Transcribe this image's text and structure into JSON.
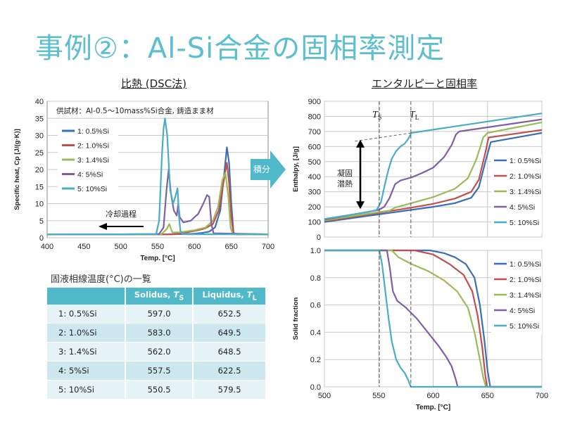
{
  "slide": {
    "title": "事例②：Al-Si合金の固相率測定",
    "left_heading": "比熱 (DSC法)",
    "right_heading": "エンタルピーと固相率",
    "integral_label": "積分"
  },
  "colors": {
    "title": "#5bbfcf",
    "accent": "#4fb8c9",
    "s1": "#3a6fb7",
    "s2": "#c0504d",
    "s3": "#9bbb59",
    "s4": "#7e5fa6",
    "s5": "#4bacc6"
  },
  "table": {
    "caption": "固液相線温度(°C)の一覧",
    "headers": [
      "",
      "Solidus, Ts",
      "Liquidus, TL"
    ],
    "rows": [
      {
        "name": "1: 0.5%Si",
        "solidus": "597.0",
        "liquidus": "652.5"
      },
      {
        "name": "2: 1.0%Si",
        "solidus": "583.0",
        "liquidus": "649.5"
      },
      {
        "name": "3: 1.4%Si",
        "solidus": "562.0",
        "liquidus": "648.5"
      },
      {
        "name": "4: 5%Si",
        "solidus": "557.5",
        "liquidus": "622.5"
      },
      {
        "name": "5: 10%Si",
        "solidus": "550.5",
        "liquidus": "579.5"
      }
    ]
  },
  "chart_data": [
    {
      "type": "line",
      "id": "dsc",
      "xlabel": "Temp. [°C]",
      "ylabel": "Specific heat, Cp [J/(g·K)]",
      "xlim": [
        400,
        700
      ],
      "ylim": [
        0,
        40
      ],
      "xticks": [
        400,
        450,
        500,
        550,
        600,
        650,
        700
      ],
      "yticks": [
        0,
        5,
        10,
        15,
        20,
        25,
        30,
        35,
        40
      ],
      "note": "供試材：Al-0.5～10mass%Si合金, 鋳造まま材",
      "annotation": "冷却過程",
      "legend": "upper-left",
      "grid": true,
      "series": [
        {
          "name": "1: 0.5%Si",
          "x": [
            400,
            500,
            560,
            590,
            600,
            610,
            620,
            628,
            635,
            640,
            644,
            647,
            650,
            653,
            656,
            700
          ],
          "y": [
            1.0,
            1.0,
            1.0,
            1.1,
            1.2,
            1.4,
            1.8,
            3,
            8,
            18,
            26.5,
            22,
            10,
            1.5,
            1.0,
            1.0
          ]
        },
        {
          "name": "2: 1.0%Si",
          "x": [
            400,
            500,
            570,
            584,
            595,
            605,
            615,
            625,
            633,
            640,
            644,
            647,
            650,
            653,
            700
          ],
          "y": [
            1.0,
            1.0,
            1.0,
            1.3,
            1.8,
            2.2,
            2.8,
            4,
            8,
            17,
            22,
            16,
            6,
            1.1,
            1.0
          ]
        },
        {
          "name": "3: 1.4%Si",
          "x": [
            400,
            500,
            555,
            562,
            566,
            570,
            580,
            600,
            615,
            625,
            632,
            638,
            642,
            646,
            649,
            652,
            700
          ],
          "y": [
            1.0,
            1.0,
            1.0,
            2.5,
            4,
            1.5,
            1.6,
            2.2,
            3,
            5,
            9,
            17,
            19,
            12,
            3,
            1.1,
            1.0
          ]
        },
        {
          "name": "4: 5%Si",
          "x": [
            400,
            500,
            552,
            558,
            562,
            565,
            568,
            572,
            576,
            578,
            580,
            585,
            595,
            605,
            612,
            617,
            620,
            623,
            626,
            700
          ],
          "y": [
            1.0,
            1.0,
            1.1,
            3,
            14,
            20,
            13,
            8,
            6.5,
            10,
            6,
            4.5,
            5,
            7,
            10,
            12.5,
            12,
            4,
            1.3,
            1.0
          ]
        },
        {
          "name": "5: 10%Si",
          "x": [
            400,
            500,
            548,
            552,
            556,
            558,
            560,
            563,
            567,
            571,
            574,
            577,
            579,
            581,
            584,
            590,
            700
          ],
          "y": [
            1.0,
            1.0,
            1.1,
            5,
            25,
            32,
            35,
            30,
            14,
            10,
            12,
            14.5,
            6,
            2,
            1.2,
            1.0,
            1.0
          ]
        }
      ]
    },
    {
      "type": "line",
      "id": "enthalpy",
      "xlabel": "",
      "ylabel": "Enthalpy, [J/g]",
      "xlim": [
        500,
        700
      ],
      "ylim": [
        0,
        900
      ],
      "xticks": [
        500,
        550,
        600,
        650,
        700
      ],
      "yticks": [
        0,
        100,
        200,
        300,
        400,
        500,
        600,
        700,
        800,
        900
      ],
      "solidus_label": "TS",
      "liquidus_label": "TL",
      "solidus_line": 550.5,
      "liquidus_line": 579.5,
      "latent_heat_label": [
        "凝固",
        "潜熱"
      ],
      "legend": "right",
      "grid": true,
      "series": [
        {
          "name": "1: 0.5%Si",
          "x": [
            500,
            550,
            580,
            600,
            620,
            635,
            642,
            648,
            653,
            700
          ],
          "y": [
            100,
            150,
            180,
            200,
            225,
            260,
            330,
            500,
            630,
            690
          ]
        },
        {
          "name": "2: 1.0%Si",
          "x": [
            500,
            550,
            580,
            600,
            620,
            635,
            642,
            648,
            651,
            700
          ],
          "y": [
            105,
            160,
            195,
            220,
            255,
            300,
            380,
            560,
            660,
            710
          ]
        },
        {
          "name": "3: 1.4%Si",
          "x": [
            500,
            550,
            560,
            565,
            580,
            600,
            620,
            632,
            640,
            646,
            650,
            700
          ],
          "y": [
            110,
            165,
            175,
            195,
            225,
            265,
            320,
            390,
            520,
            660,
            690,
            760
          ]
        },
        {
          "name": "4: 5%Si",
          "x": [
            500,
            550,
            555,
            560,
            565,
            570,
            580,
            590,
            600,
            610,
            617,
            621,
            624,
            700
          ],
          "y": [
            115,
            180,
            200,
            260,
            350,
            375,
            395,
            425,
            460,
            530,
            610,
            680,
            700,
            780
          ]
        },
        {
          "name": "5: 10%Si",
          "x": [
            500,
            540,
            548,
            552,
            556,
            559,
            562,
            566,
            570,
            574,
            577,
            580,
            700
          ],
          "y": [
            120,
            165,
            180,
            230,
            360,
            450,
            520,
            570,
            600,
            620,
            650,
            690,
            820
          ]
        },
        {
          "name": "",
          "x": [
            528,
            580
          ],
          "y": [
            635,
            690
          ],
          "dashed": true
        }
      ]
    },
    {
      "type": "line",
      "id": "solid_fraction",
      "xlabel": "Temp. [°C]",
      "ylabel": "Solid fraction",
      "xlim": [
        500,
        700
      ],
      "ylim": [
        0,
        1
      ],
      "xticks": [
        500,
        550,
        600,
        650,
        700
      ],
      "yticks": [
        0.0,
        0.2,
        0.4,
        0.6,
        0.8,
        1.0
      ],
      "legend": "right",
      "grid": true,
      "series": [
        {
          "name": "1: 0.5%Si",
          "x": [
            500,
            597,
            610,
            620,
            630,
            638,
            643,
            647,
            650,
            652.5,
            700
          ],
          "y": [
            1.0,
            1.0,
            0.98,
            0.95,
            0.9,
            0.8,
            0.6,
            0.35,
            0.12,
            0.0,
            0.0
          ]
        },
        {
          "name": "2: 1.0%Si",
          "x": [
            500,
            583,
            600,
            615,
            628,
            636,
            641,
            645,
            648,
            649.5,
            700
          ],
          "y": [
            1.0,
            1.0,
            0.97,
            0.9,
            0.82,
            0.7,
            0.52,
            0.3,
            0.08,
            0.0,
            0.0
          ]
        },
        {
          "name": "3: 1.4%Si",
          "x": [
            500,
            562,
            568,
            580,
            595,
            610,
            622,
            632,
            638,
            643,
            646,
            648.5,
            700
          ],
          "y": [
            1.0,
            1.0,
            0.95,
            0.9,
            0.85,
            0.78,
            0.7,
            0.58,
            0.4,
            0.2,
            0.07,
            0.0,
            0.0
          ]
        },
        {
          "name": "4: 5%Si",
          "x": [
            500,
            557.5,
            560,
            563,
            567,
            575,
            585,
            595,
            605,
            612,
            617,
            621,
            622.5,
            700
          ],
          "y": [
            1.0,
            1.0,
            0.88,
            0.7,
            0.63,
            0.58,
            0.5,
            0.4,
            0.3,
            0.22,
            0.15,
            0.05,
            0.0,
            0.0
          ]
        },
        {
          "name": "5: 10%Si",
          "x": [
            500,
            550.5,
            553,
            556,
            559,
            562,
            566,
            570,
            574,
            577,
            579.5,
            700
          ],
          "y": [
            1.0,
            1.0,
            0.9,
            0.7,
            0.5,
            0.33,
            0.2,
            0.14,
            0.1,
            0.05,
            0.0,
            0.0
          ]
        }
      ]
    }
  ]
}
